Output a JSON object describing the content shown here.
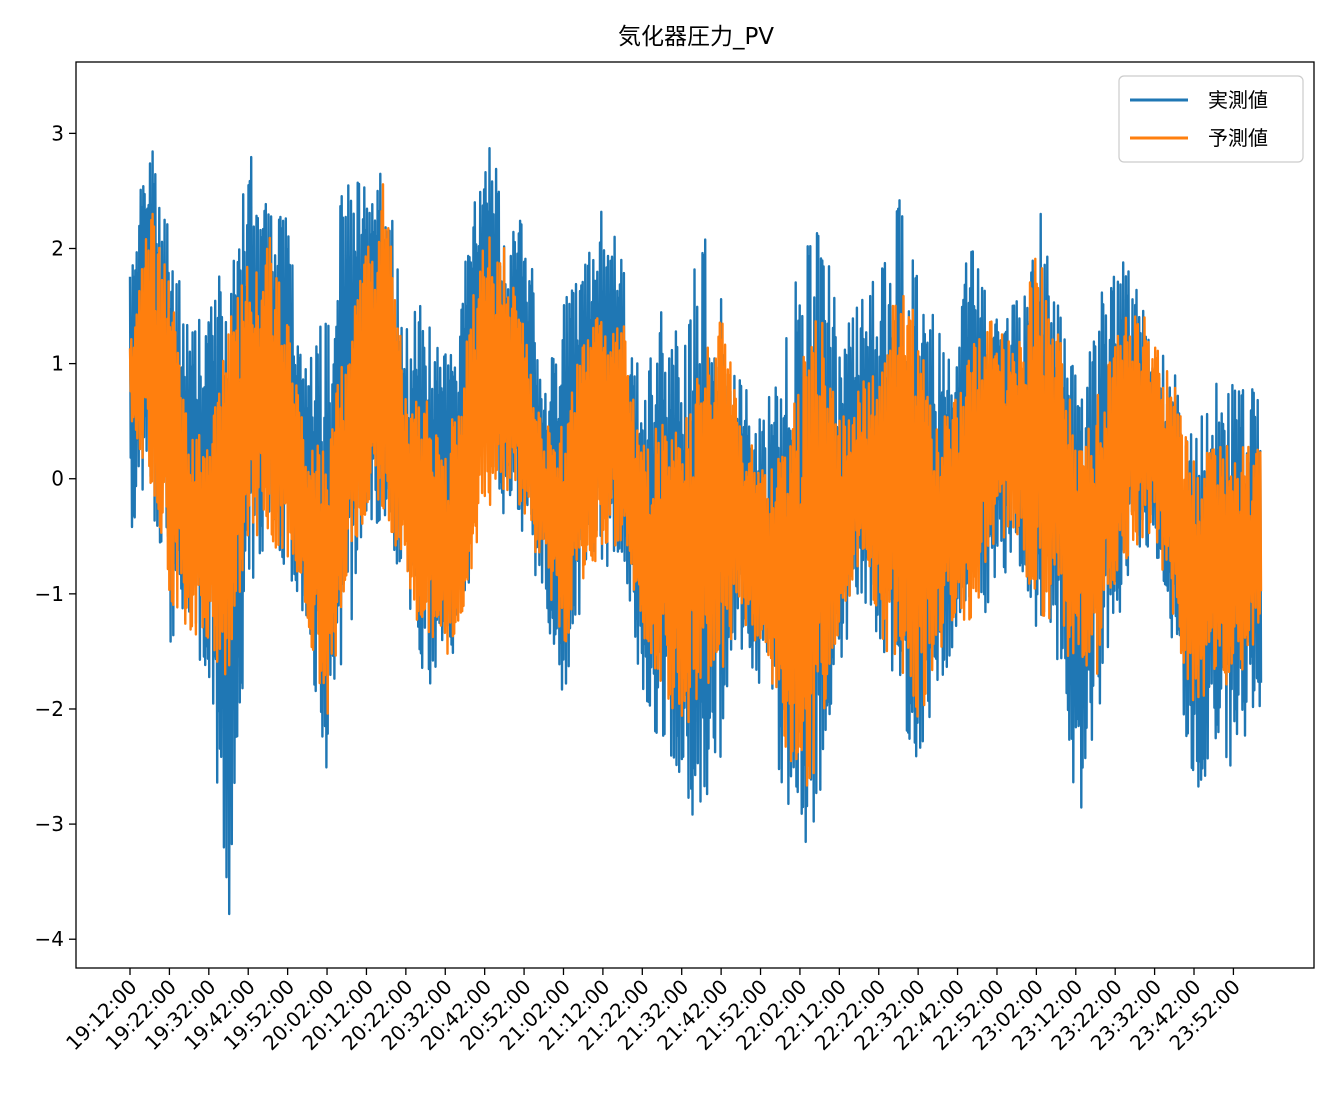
{
  "chart_data": {
    "type": "line",
    "title": "気化器圧力_PV",
    "xlabel": "",
    "ylabel": "",
    "ylim": [
      -4.25,
      3.62
    ],
    "yticks": [
      -4,
      -3,
      -2,
      -1,
      0,
      1,
      2,
      3
    ],
    "ytick_labels": [
      "−4",
      "−3",
      "−2",
      "−1",
      "0",
      "1",
      "2",
      "3"
    ],
    "x_start": "19:12:00",
    "x_end": "23:59:00",
    "xtick_labels": [
      "19:12:00",
      "19:22:00",
      "19:32:00",
      "19:42:00",
      "19:52:00",
      "20:02:00",
      "20:12:00",
      "20:22:00",
      "20:32:00",
      "20:42:00",
      "20:52:00",
      "21:02:00",
      "21:12:00",
      "21:22:00",
      "21:32:00",
      "21:42:00",
      "21:52:00",
      "22:02:00",
      "22:12:00",
      "22:22:00",
      "22:32:00",
      "22:42:00",
      "22:52:00",
      "23:02:00",
      "23:12:00",
      "23:22:00",
      "23:32:00",
      "23:42:00",
      "23:52:00"
    ],
    "grid": false,
    "legend_position": "upper right",
    "series": [
      {
        "name": "実測値",
        "color": "#1f77b4",
        "envelope_time": [
          "19:12:00",
          "19:17:00",
          "19:22:00",
          "19:27:00",
          "19:32:00",
          "19:37:00",
          "19:42:00",
          "19:47:00",
          "19:52:00",
          "19:57:00",
          "20:02:00",
          "20:07:00",
          "20:12:00",
          "20:17:00",
          "20:22:00",
          "20:27:00",
          "20:32:00",
          "20:37:00",
          "20:42:00",
          "20:47:00",
          "20:52:00",
          "20:57:00",
          "21:02:00",
          "21:07:00",
          "21:12:00",
          "21:17:00",
          "21:22:00",
          "21:27:00",
          "21:32:00",
          "21:37:00",
          "21:42:00",
          "21:47:00",
          "21:52:00",
          "21:57:00",
          "22:02:00",
          "22:07:00",
          "22:12:00",
          "22:17:00",
          "22:22:00",
          "22:27:00",
          "22:32:00",
          "22:37:00",
          "22:42:00",
          "22:47:00",
          "22:52:00",
          "22:57:00",
          "23:02:00",
          "23:07:00",
          "23:12:00",
          "23:17:00",
          "23:22:00",
          "23:27:00",
          "23:32:00",
          "23:37:00",
          "23:42:00",
          "23:47:00",
          "23:52:00",
          "23:57:00"
        ],
        "envelope_high": [
          2.0,
          3.2,
          2.2,
          1.3,
          1.5,
          2.0,
          3.0,
          2.4,
          2.3,
          1.0,
          1.5,
          2.8,
          2.6,
          2.7,
          1.3,
          1.7,
          1.2,
          2.0,
          3.0,
          2.5,
          2.4,
          1.0,
          1.5,
          2.0,
          2.5,
          1.9,
          0.8,
          1.5,
          1.2,
          2.2,
          1.7,
          0.9,
          0.5,
          1.0,
          2.0,
          2.4,
          1.3,
          1.6,
          1.8,
          2.5,
          2.0,
          1.4,
          1.7,
          2.1,
          1.4,
          1.6,
          2.5,
          1.8,
          0.9,
          1.4,
          2.1,
          1.7,
          1.2,
          1.1,
          0.4,
          0.9,
          0.9,
          0.8
        ],
        "envelope_low": [
          -0.6,
          0.0,
          -1.5,
          -1.4,
          -1.8,
          -3.9,
          -1.0,
          -0.5,
          -0.8,
          -1.5,
          -2.6,
          -1.5,
          -0.4,
          -0.5,
          -1.0,
          -1.8,
          -1.8,
          -1.2,
          0.0,
          -0.4,
          -0.5,
          -1.2,
          -1.9,
          -1.0,
          -0.8,
          -0.7,
          -2.0,
          -2.3,
          -2.6,
          -3.3,
          -2.4,
          -1.5,
          -1.8,
          -2.6,
          -3.4,
          -2.8,
          -1.7,
          -1.0,
          -1.5,
          -2.2,
          -2.5,
          -1.8,
          -1.5,
          -1.4,
          -0.9,
          -0.7,
          -1.4,
          -1.5,
          -3.2,
          -2.2,
          -1.3,
          -0.8,
          -0.6,
          -1.5,
          -2.8,
          -2.5,
          -2.6,
          -2.0
        ]
      },
      {
        "name": "予測値",
        "color": "#ff7f0e",
        "envelope_time": [
          "19:12:00",
          "19:17:00",
          "19:22:00",
          "19:27:00",
          "19:32:00",
          "19:37:00",
          "19:42:00",
          "19:47:00",
          "19:52:00",
          "19:57:00",
          "20:02:00",
          "20:07:00",
          "20:12:00",
          "20:17:00",
          "20:22:00",
          "20:27:00",
          "20:32:00",
          "20:37:00",
          "20:42:00",
          "20:47:00",
          "20:52:00",
          "20:57:00",
          "21:02:00",
          "21:07:00",
          "21:12:00",
          "21:17:00",
          "21:22:00",
          "21:27:00",
          "21:32:00",
          "21:37:00",
          "21:42:00",
          "21:47:00",
          "21:52:00",
          "21:57:00",
          "22:02:00",
          "22:07:00",
          "22:12:00",
          "22:17:00",
          "22:22:00",
          "22:27:00",
          "22:32:00",
          "22:37:00",
          "22:42:00",
          "22:47:00",
          "22:52:00",
          "22:57:00",
          "23:02:00",
          "23:07:00",
          "23:12:00",
          "23:17:00",
          "23:22:00",
          "23:27:00",
          "23:32:00",
          "23:37:00",
          "23:42:00",
          "23:47:00",
          "23:52:00",
          "23:57:00"
        ],
        "envelope_high": [
          1.2,
          2.4,
          1.8,
          0.4,
          0.4,
          1.4,
          1.9,
          2.2,
          1.4,
          0.2,
          0.4,
          1.3,
          2.0,
          2.7,
          0.8,
          0.8,
          0.2,
          1.2,
          2.2,
          2.0,
          1.3,
          0.5,
          0.5,
          1.2,
          1.6,
          1.4,
          0.3,
          0.5,
          0.5,
          1.0,
          1.5,
          0.6,
          0.1,
          0.2,
          1.0,
          1.5,
          0.5,
          0.8,
          1.0,
          1.7,
          1.4,
          0.5,
          0.8,
          1.3,
          1.4,
          1.1,
          2.1,
          1.4,
          0.5,
          0.8,
          1.2,
          1.6,
          1.2,
          0.9,
          0.2,
          0.3,
          0.3,
          0.3
        ],
        "envelope_low": [
          0.5,
          0.0,
          -1.1,
          -1.3,
          -1.5,
          -1.8,
          -0.5,
          -0.6,
          -0.7,
          -1.3,
          -2.1,
          -1.0,
          -0.3,
          -0.3,
          -0.9,
          -1.5,
          -1.6,
          -1.1,
          -0.3,
          -0.1,
          -0.3,
          -0.9,
          -1.5,
          -0.9,
          -0.6,
          -0.6,
          -1.4,
          -1.8,
          -2.2,
          -2.0,
          -1.8,
          -1.2,
          -1.5,
          -2.2,
          -2.8,
          -2.5,
          -1.3,
          -0.8,
          -1.3,
          -1.8,
          -2.2,
          -1.5,
          -1.3,
          -1.2,
          -0.6,
          -0.5,
          -1.2,
          -1.3,
          -1.7,
          -1.8,
          -1.0,
          -0.6,
          -0.5,
          -1.3,
          -2.0,
          -1.8,
          -1.9,
          -1.5
        ]
      }
    ]
  }
}
